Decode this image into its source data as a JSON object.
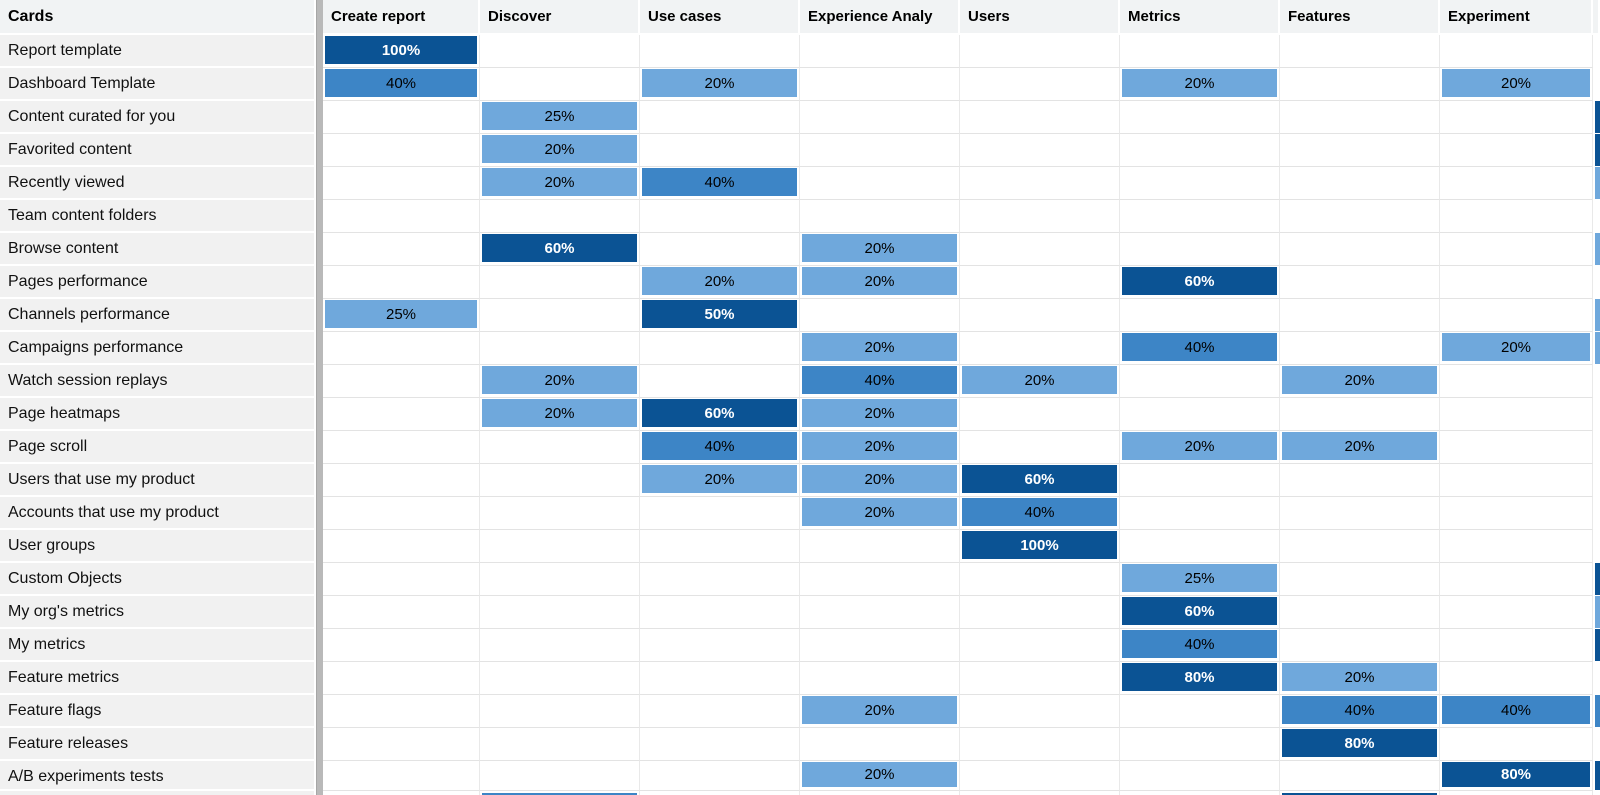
{
  "header": {
    "cards_label": "Cards",
    "columns": [
      "Create report",
      "Discover",
      "Use cases",
      "Experience Analy",
      "Users",
      "Metrics",
      "Features",
      "Experiment"
    ],
    "truncated_column_note": "ninth column clipped at right edge"
  },
  "colors": {
    "dark": "#0b5394",
    "medium": "#3d85c6",
    "light": "#6fa8dc",
    "header_bg": "#f1f3f4",
    "row_label_bg": "#f1f1f1",
    "pane_divider": "#b9b9b9"
  },
  "matrix": {
    "rows": [
      {
        "label": "Report template",
        "values": [
          "100%",
          null,
          null,
          null,
          null,
          null,
          null,
          null
        ],
        "edge": null
      },
      {
        "label": "Dashboard Template",
        "values": [
          "40%",
          null,
          "20%",
          null,
          null,
          "20%",
          null,
          "20%"
        ],
        "edge": null
      },
      {
        "label": "Content curated for you",
        "values": [
          null,
          "25%",
          null,
          null,
          null,
          null,
          null,
          null
        ],
        "edge": "dark"
      },
      {
        "label": "Favorited content",
        "values": [
          null,
          "20%",
          null,
          null,
          null,
          null,
          null,
          null
        ],
        "edge": "dark"
      },
      {
        "label": "Recently viewed",
        "values": [
          null,
          "20%",
          "40%",
          null,
          null,
          null,
          null,
          null
        ],
        "edge": "light"
      },
      {
        "label": "Team content folders",
        "values": [
          null,
          null,
          null,
          null,
          null,
          null,
          null,
          null
        ],
        "edge": null
      },
      {
        "label": "Browse content",
        "values": [
          null,
          "60%",
          null,
          "20%",
          null,
          null,
          null,
          null
        ],
        "edge": "light"
      },
      {
        "label": "Pages performance",
        "values": [
          null,
          null,
          "20%",
          "20%",
          null,
          "60%",
          null,
          null
        ],
        "edge": null
      },
      {
        "label": "Channels performance",
        "values": [
          "25%",
          null,
          "50%",
          null,
          null,
          null,
          null,
          null
        ],
        "edge": "light"
      },
      {
        "label": "Campaigns performance",
        "values": [
          null,
          null,
          null,
          "20%",
          null,
          "40%",
          null,
          "20%"
        ],
        "edge": "light"
      },
      {
        "label": "Watch session replays",
        "values": [
          null,
          "20%",
          null,
          "40%",
          "20%",
          null,
          "20%",
          null
        ],
        "edge": null
      },
      {
        "label": "Page heatmaps",
        "values": [
          null,
          "20%",
          "60%",
          "20%",
          null,
          null,
          null,
          null
        ],
        "edge": null
      },
      {
        "label": "Page scroll",
        "values": [
          null,
          null,
          "40%",
          "20%",
          null,
          "20%",
          "20%",
          null
        ],
        "edge": null
      },
      {
        "label": "Users that use my product",
        "values": [
          null,
          null,
          "20%",
          "20%",
          "60%",
          null,
          null,
          null
        ],
        "edge": null
      },
      {
        "label": "Accounts that use my product",
        "values": [
          null,
          null,
          null,
          "20%",
          "40%",
          null,
          null,
          null
        ],
        "edge": null
      },
      {
        "label": "User groups",
        "values": [
          null,
          null,
          null,
          null,
          "100%",
          null,
          null,
          null
        ],
        "edge": null
      },
      {
        "label": "Custom Objects",
        "values": [
          null,
          null,
          null,
          null,
          null,
          "25%",
          null,
          null
        ],
        "edge": "dark"
      },
      {
        "label": "My org's metrics",
        "values": [
          null,
          null,
          null,
          null,
          null,
          "60%",
          null,
          null
        ],
        "edge": "light"
      },
      {
        "label": "My metrics",
        "values": [
          null,
          null,
          null,
          null,
          null,
          "40%",
          null,
          null
        ],
        "edge": "dark"
      },
      {
        "label": "Feature metrics",
        "values": [
          null,
          null,
          null,
          null,
          null,
          "80%",
          "20%",
          null
        ],
        "edge": null
      },
      {
        "label": "Feature flags",
        "values": [
          null,
          null,
          null,
          "20%",
          null,
          null,
          "40%",
          "40%"
        ],
        "edge": "medium"
      },
      {
        "label": "Feature releases",
        "values": [
          null,
          null,
          null,
          null,
          null,
          null,
          "80%",
          null
        ],
        "edge": null
      },
      {
        "label": "A/B experiments tests",
        "values": [
          null,
          null,
          null,
          "20%",
          null,
          null,
          null,
          "80%"
        ],
        "edge": "dark"
      }
    ],
    "partial_bottom_row": {
      "label": "",
      "cell_colors": [
        null,
        "medium",
        null,
        null,
        null,
        null,
        "dark",
        null
      ],
      "edge": null
    },
    "intensity_rule": "value >= 50% dark blue, 40% medium blue, <= 25% light blue"
  }
}
